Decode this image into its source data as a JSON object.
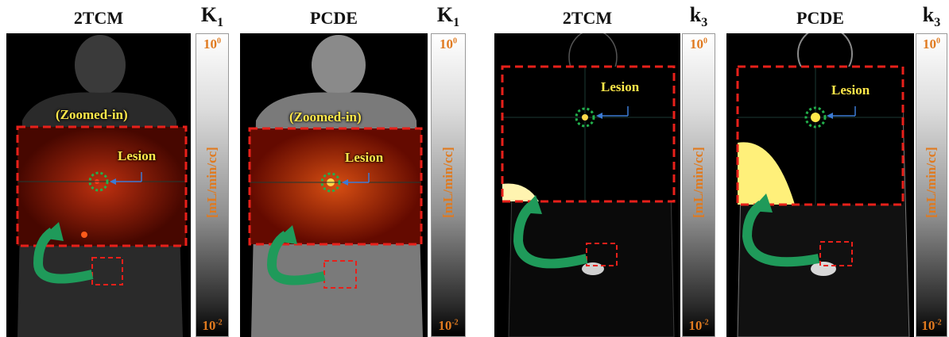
{
  "panels": [
    {
      "method": "2TCM",
      "param": "K",
      "param_sub": "1",
      "zoom_label": "(Zoomed-in)",
      "lesion_label": "Lesion"
    },
    {
      "method": "PCDE",
      "param": "K",
      "param_sub": "1",
      "zoom_label": "(Zoomed-in)",
      "lesion_label": "Lesion"
    },
    {
      "method": "2TCM",
      "param": "k",
      "param_sub": "3",
      "zoom_label": "",
      "lesion_label": "Lesion"
    },
    {
      "method": "PCDE",
      "param": "k",
      "param_sub": "3",
      "zoom_label": "",
      "lesion_label": "Lesion"
    }
  ],
  "colorbar": {
    "top_base": "10",
    "top_exp": "0",
    "bottom_base": "10",
    "bottom_exp": "-2",
    "unit": "[mL/min/cc]"
  },
  "colors": {
    "zoom_box": "#e8201a",
    "lesion_circle": "#22b14c",
    "arrow": "#1f9a5a",
    "tick_text": "#e07a1f"
  }
}
